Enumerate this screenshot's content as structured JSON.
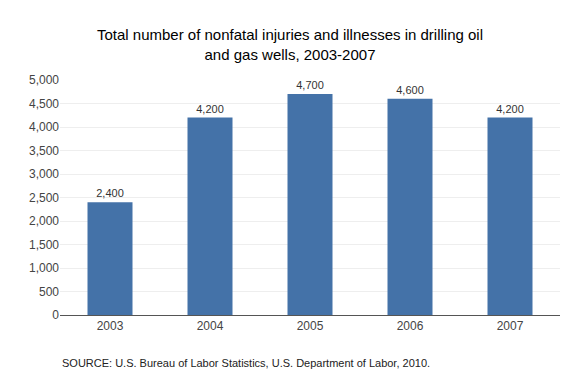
{
  "chart_data": {
    "type": "bar",
    "title": "Total number of nonfatal injuries and illnesses in drilling oil\nand gas wells, 2003-2007",
    "categories": [
      "2003",
      "2004",
      "2005",
      "2006",
      "2007"
    ],
    "values": [
      2400,
      4200,
      4700,
      4600,
      4200
    ],
    "value_labels": [
      "2,400",
      "4,200",
      "4,700",
      "4,600",
      "4,200"
    ],
    "data_labels": true,
    "color": "#4472a8",
    "ylim": [
      0,
      5000
    ],
    "yticks": [
      0,
      500,
      {
        "value": 1000,
        "label": "1,000"
      },
      {
        "value": 1500,
        "label": "1,500"
      },
      {
        "value": 2000,
        "label": "2,000"
      },
      {
        "value": 2500,
        "label": "2,500"
      },
      {
        "value": 3000,
        "label": "3,000"
      },
      {
        "value": 3500,
        "label": "3,500"
      },
      {
        "value": 4000,
        "label": "4,000"
      },
      {
        "value": 4500,
        "label": "4,500"
      },
      {
        "value": 5000,
        "label": "5,000"
      }
    ],
    "grid": true,
    "annotations": [
      "SOURCE: U.S. Bureau of Labor Statistics, U.S. Department of Labor, 2010."
    ]
  }
}
